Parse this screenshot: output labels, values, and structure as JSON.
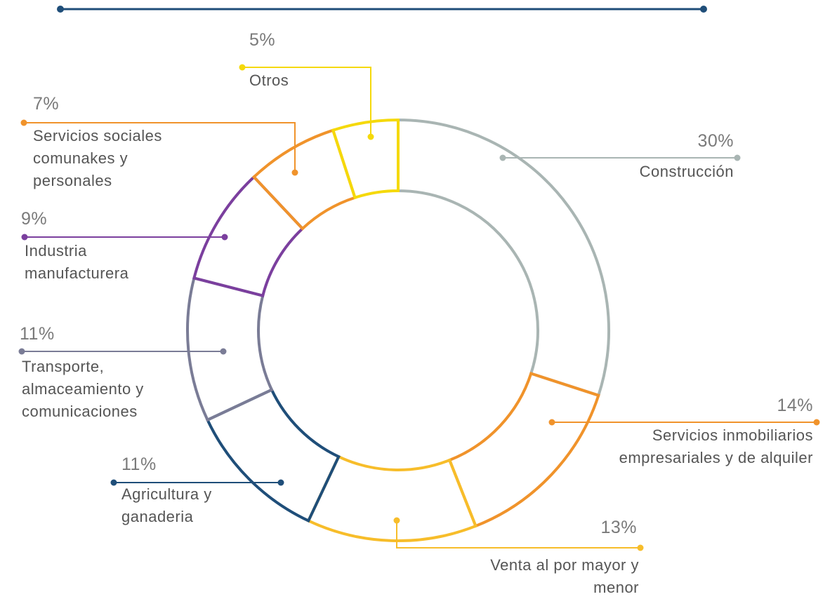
{
  "chart_data": {
    "type": "donut",
    "categories": [
      "Construcción",
      "Servicios inmobiliarios empresariales y de alquiler",
      "Venta al por mayor y menor",
      "Agricultura y ganaderia",
      "Transporte, almaceamiento y comunicaciones",
      "Industria manufacturera",
      "Servicios sociales comunakes y personales",
      "Otros"
    ],
    "values": [
      30,
      14,
      13,
      11,
      11,
      9,
      7,
      5
    ],
    "value_labels": [
      "30%",
      "14%",
      "13%",
      "11%",
      "11%",
      "9%",
      "7%",
      "5%"
    ],
    "colors": [
      "#a9b5b3",
      "#f0932b",
      "#f7bd2a",
      "#1f4e79",
      "#7a7c96",
      "#7b3f9e",
      "#f0932b",
      "#f5d90a"
    ]
  }
}
